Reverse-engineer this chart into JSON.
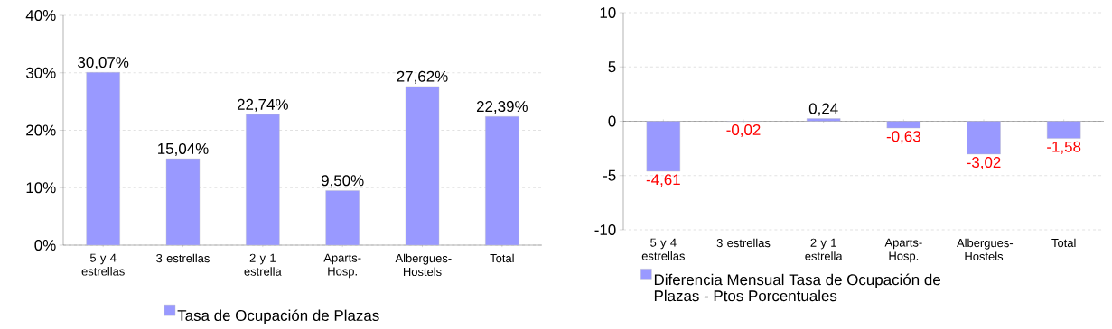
{
  "chart_data": [
    {
      "type": "bar",
      "categories": [
        "5 y 4 estrellas",
        "3 estrellas",
        "2 y 1 estrella",
        "Aparts-Hosp.",
        "Albergues-Hostels",
        "Total"
      ],
      "series": [
        {
          "name": "Tasa de Ocupación de Plazas",
          "color": "#9999ff",
          "values": [
            30.07,
            15.04,
            22.74,
            9.5,
            27.62,
            22.39
          ],
          "value_labels": [
            "30,07%",
            "15,04%",
            "22,74%",
            "9,50%",
            "27,62%",
            "22,39%"
          ]
        }
      ],
      "ylim": [
        0,
        40
      ],
      "yticks": [
        {
          "value": 0,
          "label": "0%"
        },
        {
          "value": 10,
          "label": "10%"
        },
        {
          "value": 20,
          "label": "20%"
        },
        {
          "value": 30,
          "label": "30%"
        },
        {
          "value": 40,
          "label": "40%"
        }
      ],
      "grid": "y",
      "legend": "bottom"
    },
    {
      "type": "bar",
      "categories": [
        "5 y 4 estrellas",
        "3 estrellas",
        "2 y 1 estrella",
        "Aparts-Hosp.",
        "Albergues-Hostels",
        "Total"
      ],
      "series": [
        {
          "name": "Diferencia Mensual Tasa de Ocupación de Plazas - Ptos Porcentuales",
          "color": "#9999ff",
          "values": [
            -4.61,
            -0.02,
            0.24,
            -0.63,
            -3.02,
            -1.58
          ],
          "value_labels": [
            "-4,61",
            "-0,02",
            "0,24",
            "-0,63",
            "-3,02",
            "-1,58"
          ]
        }
      ],
      "ylim": [
        -10,
        10
      ],
      "yticks": [
        -10,
        -5,
        0,
        5,
        10
      ],
      "grid": "y",
      "legend": "bottom left"
    }
  ]
}
